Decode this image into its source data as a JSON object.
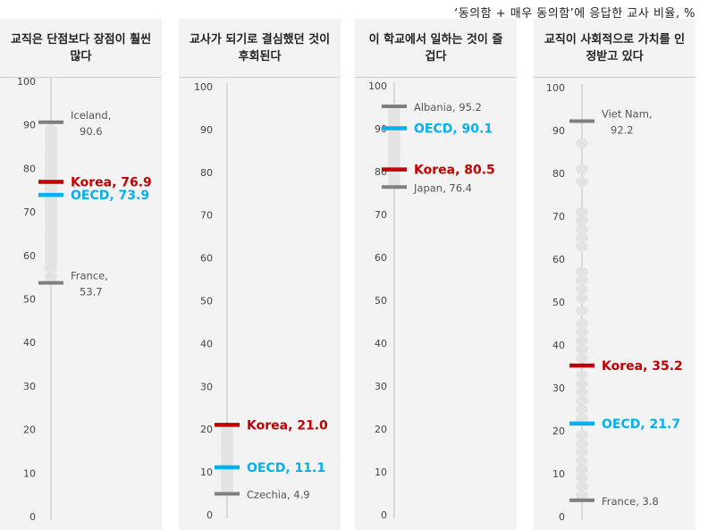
{
  "top_note": "‘동의함 + 매우 동의함’에 응답한 교사 비율, %",
  "colors": {
    "korea": "#c00000",
    "oecd": "#00b0f0",
    "extreme": "#7f7f7f",
    "dots": "#e3e3e3",
    "axis": "#bfbfbf"
  },
  "chart_data": [
    {
      "type": "scatter",
      "title": "교직은 단점보다 장점이 훨씬 많다",
      "ylim": [
        0,
        100
      ],
      "ticks": [
        "0",
        "10",
        "20",
        "30",
        "40",
        "50",
        "60",
        "70",
        "80",
        "90",
        "100"
      ],
      "distribution": [
        55,
        57,
        58,
        59,
        60,
        61,
        62,
        63,
        64,
        65,
        66,
        67,
        68,
        69,
        70,
        71,
        72,
        73,
        74,
        75,
        76,
        77,
        78,
        79,
        80,
        81,
        82,
        83,
        84,
        85,
        86,
        87,
        88,
        89
      ],
      "markers": [
        {
          "kind": "max",
          "country": "Iceland",
          "value": 90.6,
          "label_name": "Iceland,",
          "label_value": "90.6"
        },
        {
          "kind": "korea",
          "country": "Korea",
          "value": 76.9,
          "label_name": "Korea, 76.9",
          "label_value": ""
        },
        {
          "kind": "oecd",
          "country": "OECD",
          "value": 73.9,
          "label_name": "OECD, 73.9",
          "label_value": ""
        },
        {
          "kind": "min",
          "country": "France",
          "value": 53.7,
          "label_name": "France,",
          "label_value": "53.7"
        }
      ]
    },
    {
      "type": "scatter",
      "title": "교사가 되기로 결심했던 것이 후회된다",
      "ylim": [
        0,
        100
      ],
      "ticks": [
        "0",
        "10",
        "20",
        "30",
        "40",
        "50",
        "60",
        "70",
        "80",
        "90",
        "100"
      ],
      "distribution": [
        6,
        7,
        8,
        9,
        10,
        11,
        12,
        13,
        14,
        15,
        16,
        17,
        18,
        19,
        20
      ],
      "markers": [
        {
          "kind": "korea",
          "country": "Korea",
          "value": 21.0,
          "label_name": "Korea, 21.0",
          "label_value": ""
        },
        {
          "kind": "oecd",
          "country": "OECD",
          "value": 11.1,
          "label_name": "OECD, 11.1",
          "label_value": ""
        },
        {
          "kind": "min",
          "country": "Czechia",
          "value": 4.9,
          "label_name": "Czechia, 4.9",
          "label_value": ""
        }
      ]
    },
    {
      "type": "scatter",
      "title": "이 학교에서 일하는 것이 즐겁다",
      "ylim": [
        0,
        100
      ],
      "ticks": [
        "0",
        "10",
        "20",
        "30",
        "40",
        "50",
        "60",
        "70",
        "80",
        "90",
        "100"
      ],
      "distribution": [
        77,
        78,
        79,
        80,
        81,
        82,
        83,
        84,
        85,
        86,
        87,
        88,
        89,
        90,
        91,
        92,
        93,
        94
      ],
      "markers": [
        {
          "kind": "max",
          "country": "Albania",
          "value": 95.2,
          "label_name": "Albania, 95.2",
          "label_value": ""
        },
        {
          "kind": "oecd",
          "country": "OECD",
          "value": 90.1,
          "label_name": "OECD, 90.1",
          "label_value": ""
        },
        {
          "kind": "korea",
          "country": "Korea",
          "value": 80.5,
          "label_name": "Korea, 80.5",
          "label_value": ""
        },
        {
          "kind": "min",
          "country": "Japan",
          "value": 76.4,
          "label_name": "Japan, 76.4",
          "label_value": ""
        }
      ]
    },
    {
      "type": "scatter",
      "title": "교직이 사회적으로 가치를 인정받고 있다",
      "ylim": [
        0,
        100
      ],
      "ticks": [
        "0",
        "10",
        "20",
        "30",
        "40",
        "50",
        "60",
        "70",
        "80",
        "90",
        "100"
      ],
      "distribution": [
        5,
        7,
        9,
        11,
        13,
        15,
        17,
        19,
        23,
        25,
        27,
        29,
        31,
        33,
        37,
        39,
        41,
        43,
        45,
        48,
        51,
        53,
        55,
        57,
        63,
        65,
        67,
        69,
        71,
        78,
        81,
        87
      ],
      "markers": [
        {
          "kind": "max",
          "country": "Viet Nam",
          "value": 92.2,
          "label_name": "Viet Nam,",
          "label_value": "92.2"
        },
        {
          "kind": "korea",
          "country": "Korea",
          "value": 35.2,
          "label_name": "Korea, 35.2",
          "label_value": ""
        },
        {
          "kind": "oecd",
          "country": "OECD",
          "value": 21.7,
          "label_name": "OECD, 21.7",
          "label_value": ""
        },
        {
          "kind": "min",
          "country": "France",
          "value": 3.8,
          "label_name": "France, 3.8",
          "label_value": ""
        }
      ]
    }
  ]
}
